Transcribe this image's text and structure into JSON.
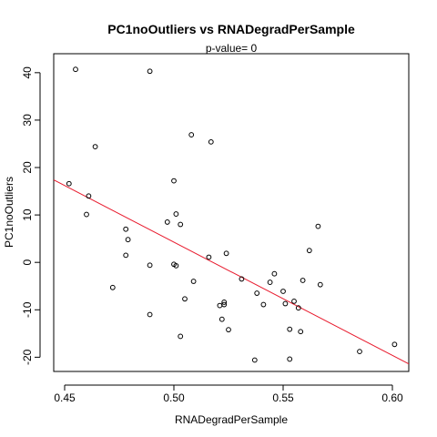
{
  "chart_data": {
    "type": "scatter",
    "title": "PC1noOutliers  vs  RNADegradPerSample",
    "subtitle": "p-value= 0",
    "xlabel": "RNADegradPerSample",
    "ylabel": "PC1noOutliers",
    "xlim": [
      0.445,
      0.6075
    ],
    "ylim": [
      -23,
      44
    ],
    "xticks": [
      0.45,
      0.5,
      0.55,
      0.6
    ],
    "xtick_labels": [
      "0.45",
      "0.50",
      "0.55",
      "0.60"
    ],
    "yticks": [
      -20,
      -10,
      0,
      10,
      20,
      30,
      40
    ],
    "ytick_labels": [
      "-20",
      "-10",
      "0",
      "10",
      "20",
      "30",
      "40"
    ],
    "grid": false,
    "point_color": "#000000",
    "fit_line_color": "#e8192c",
    "fit_line": {
      "x": [
        0.445,
        0.6075
      ],
      "y": [
        17.4,
        -21.4
      ]
    },
    "points": [
      {
        "x": 0.455,
        "y": 40.7
      },
      {
        "x": 0.489,
        "y": 40.3
      },
      {
        "x": 0.508,
        "y": 26.9
      },
      {
        "x": 0.517,
        "y": 25.4
      },
      {
        "x": 0.464,
        "y": 24.4
      },
      {
        "x": 0.5,
        "y": 17.2
      },
      {
        "x": 0.452,
        "y": 16.6
      },
      {
        "x": 0.461,
        "y": 14.0
      },
      {
        "x": 0.46,
        "y": 10.1
      },
      {
        "x": 0.501,
        "y": 10.2
      },
      {
        "x": 0.497,
        "y": 8.5
      },
      {
        "x": 0.503,
        "y": 8.0
      },
      {
        "x": 0.478,
        "y": 7.0
      },
      {
        "x": 0.566,
        "y": 7.6
      },
      {
        "x": 0.479,
        "y": 4.8
      },
      {
        "x": 0.562,
        "y": 2.5
      },
      {
        "x": 0.524,
        "y": 1.9
      },
      {
        "x": 0.478,
        "y": 1.5
      },
      {
        "x": 0.516,
        "y": 1.1
      },
      {
        "x": 0.5,
        "y": -0.4
      },
      {
        "x": 0.501,
        "y": -0.7
      },
      {
        "x": 0.489,
        "y": -0.6
      },
      {
        "x": 0.546,
        "y": -2.4
      },
      {
        "x": 0.531,
        "y": -3.5
      },
      {
        "x": 0.509,
        "y": -4.0
      },
      {
        "x": 0.544,
        "y": -4.2
      },
      {
        "x": 0.559,
        "y": -3.8
      },
      {
        "x": 0.567,
        "y": -4.7
      },
      {
        "x": 0.472,
        "y": -5.3
      },
      {
        "x": 0.55,
        "y": -6.1
      },
      {
        "x": 0.538,
        "y": -6.5
      },
      {
        "x": 0.505,
        "y": -7.7
      },
      {
        "x": 0.555,
        "y": -8.2
      },
      {
        "x": 0.523,
        "y": -8.4
      },
      {
        "x": 0.551,
        "y": -8.7
      },
      {
        "x": 0.523,
        "y": -8.9
      },
      {
        "x": 0.541,
        "y": -8.9
      },
      {
        "x": 0.521,
        "y": -9.1
      },
      {
        "x": 0.557,
        "y": -9.6
      },
      {
        "x": 0.489,
        "y": -11.0
      },
      {
        "x": 0.522,
        "y": -12.0
      },
      {
        "x": 0.525,
        "y": -14.2
      },
      {
        "x": 0.553,
        "y": -14.1
      },
      {
        "x": 0.558,
        "y": -14.6
      },
      {
        "x": 0.503,
        "y": -15.6
      },
      {
        "x": 0.601,
        "y": -17.3
      },
      {
        "x": 0.585,
        "y": -18.8
      },
      {
        "x": 0.537,
        "y": -20.6
      },
      {
        "x": 0.553,
        "y": -20.4
      }
    ]
  }
}
